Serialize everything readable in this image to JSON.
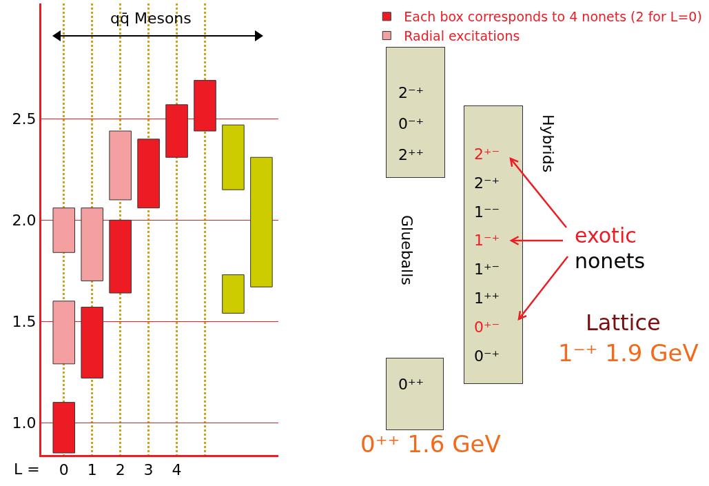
{
  "chart_data": {
    "type": "bar",
    "xlabel": "L =",
    "categories": [
      "0",
      "1",
      "2",
      "3",
      "4",
      null,
      null,
      null
    ],
    "series": [
      {
        "name": "Each box corresponds to 4 nonets (2 for L=0)",
        "color": "#ed1c24",
        "base": [
          0.85,
          1.22,
          1.64,
          2.06,
          2.31,
          2.44,
          null,
          null
        ],
        "values": [
          0.25,
          0.35,
          0.36,
          0.34,
          0.26,
          0.25,
          null,
          null
        ]
      },
      {
        "name": "Radial excitations",
        "color": "#f4a0a0",
        "base": [
          1.29,
          1.7,
          2.1,
          null,
          null,
          null,
          null,
          null
        ],
        "values": [
          0.31,
          0.36,
          0.34,
          null,
          null,
          null,
          null,
          null
        ]
      },
      {
        "color": "#f4a0a0",
        "base": [
          1.84,
          null,
          null,
          null,
          null,
          null,
          null,
          null
        ],
        "values": [
          0.22,
          null,
          null,
          null,
          null,
          null,
          null,
          null
        ]
      },
      {
        "color": "#cccc00",
        "base": [
          null,
          null,
          null,
          null,
          null,
          null,
          1.54,
          1.67
        ],
        "values": [
          null,
          null,
          null,
          null,
          null,
          null,
          0.19,
          0.64
        ]
      },
      {
        "color": "#cccc00",
        "base": [
          null,
          null,
          null,
          null,
          null,
          null,
          2.15,
          null
        ],
        "values": [
          null,
          null,
          null,
          null,
          null,
          null,
          0.32,
          null
        ]
      }
    ],
    "ylim": [
      0.84,
      3.07
    ],
    "yticks": [
      {
        "value": 1.0,
        "label": "1.0"
      },
      {
        "value": 1.5,
        "label": "1.5"
      },
      {
        "value": 2.0,
        "label": "2.0"
      },
      {
        "value": 2.5,
        "label": "2.5"
      }
    ],
    "grid": "xy",
    "legend": "top right",
    "annotations": [
      "qq̄ Mesons",
      "Glueballs",
      "2⁻⁺\n0⁻⁺\n2⁺⁺",
      "0⁺⁺",
      "0⁺⁺ 1.6 GeV",
      "Hybrids",
      "2⁺⁻\n2⁻⁺\n1⁻⁻\n1⁻⁺\n1⁺⁻\n1⁺⁺\n0⁺⁻\n0⁻⁺",
      "exotic",
      "nonets",
      "Lattice",
      "1⁻⁺ 1.9 GeV"
    ]
  }
}
